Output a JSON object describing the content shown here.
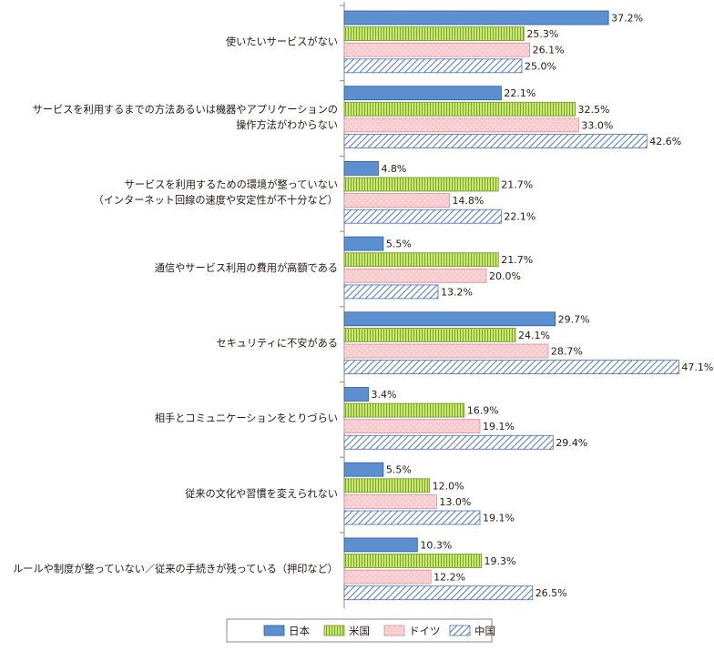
{
  "chart_data": {
    "type": "bar",
    "orientation": "horizontal",
    "categories": [
      [
        "使いたいサービスがない"
      ],
      [
        "サービスを利用するまでの方法あるいは機器やアプリケーションの",
        "操作方法がわからない"
      ],
      [
        "サービスを利用するための環境が整っていない",
        "（インターネット回線の速度や安定性が不十分など）"
      ],
      [
        "通信やサービス利用の費用が高額である"
      ],
      [
        "セキュリティに不安がある"
      ],
      [
        "相手とコミュニケーションをとりづらい"
      ],
      [
        "従来の文化や習慣を変えられない"
      ],
      [
        "ルールや制度が整っていない／従来の手続きが残っている（押印など）"
      ]
    ],
    "series": [
      {
        "name": "日本",
        "values": [
          37.2,
          22.1,
          4.8,
          5.5,
          29.7,
          3.4,
          5.5,
          10.3
        ],
        "color": "#5b8fd0",
        "pattern": "solid"
      },
      {
        "name": "米国",
        "values": [
          25.3,
          32.5,
          21.7,
          21.7,
          24.1,
          16.9,
          12.0,
          19.3
        ],
        "color": "#c8e66a",
        "pattern": "vertical-stripes"
      },
      {
        "name": "ドイツ",
        "values": [
          26.1,
          33.0,
          14.8,
          20.0,
          28.7,
          19.1,
          13.0,
          12.2
        ],
        "color": "#fbc8cc",
        "pattern": "dots"
      },
      {
        "name": "中国",
        "values": [
          25.0,
          42.6,
          22.1,
          13.2,
          47.1,
          29.4,
          19.1,
          26.5
        ],
        "color": "#ffffff",
        "pattern": "diagonal-hatch"
      }
    ],
    "value_suffix": "%",
    "xlim": [
      0,
      50
    ],
    "grid": false,
    "legend_position": "bottom-center"
  }
}
